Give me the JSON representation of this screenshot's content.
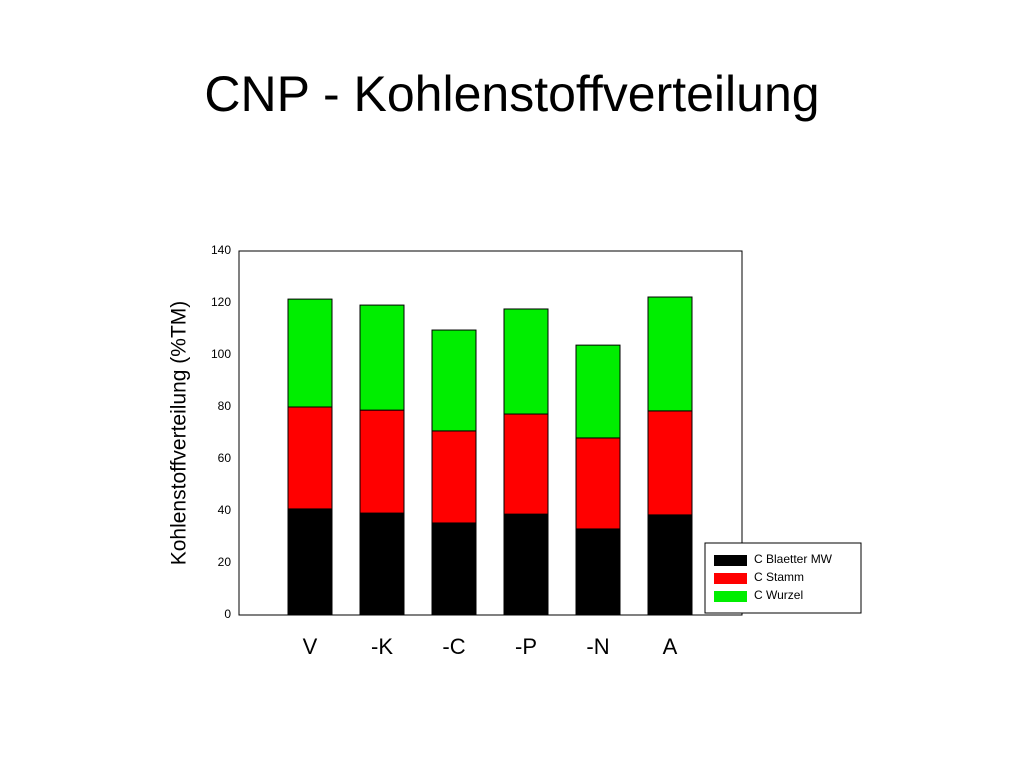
{
  "chart_data": {
    "type": "stacked_bar",
    "title": "CNP - Kohlenstoffverteilung",
    "y_label": "Kohlenstoffverteilung (%TM)",
    "categories": [
      "V",
      "-K",
      "-C",
      "-P",
      "-N",
      "A"
    ],
    "series": [
      {
        "name": "C Blaetter MW",
        "color": "#000000",
        "values": [
          40.8,
          39.2,
          35.4,
          38.8,
          33.1,
          38.5
        ]
      },
      {
        "name": "C Stamm",
        "color": "#ff0000",
        "values": [
          39.2,
          39.6,
          35.4,
          38.5,
          35.0,
          40.0
        ]
      },
      {
        "name": "C Wurzel",
        "color": "#00ee00",
        "values": [
          41.5,
          40.4,
          38.8,
          40.4,
          35.7,
          43.8
        ]
      }
    ],
    "ylim": [
      0,
      140
    ],
    "yticks": [
      0,
      20,
      40,
      60,
      80,
      100,
      120,
      140
    ],
    "legend": "lower right"
  }
}
